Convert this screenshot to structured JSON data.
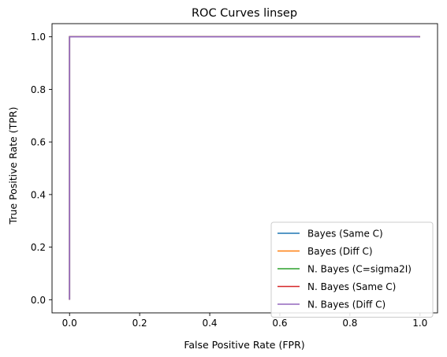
{
  "chart_data": {
    "type": "line",
    "title": "ROC Curves linsep",
    "xlabel": "False Positive Rate (FPR)",
    "ylabel": "True Positive Rate (TPR)",
    "xlim": [
      -0.05,
      1.05
    ],
    "ylim": [
      -0.05,
      1.05
    ],
    "xticks": [
      0.0,
      0.2,
      0.4,
      0.6,
      0.8,
      1.0
    ],
    "yticks": [
      0.0,
      0.2,
      0.4,
      0.6,
      0.8,
      1.0
    ],
    "xtick_labels": [
      "0.0",
      "0.2",
      "0.4",
      "0.6",
      "0.8",
      "1.0"
    ],
    "ytick_labels": [
      "0.0",
      "0.2",
      "0.4",
      "0.6",
      "0.8",
      "1.0"
    ],
    "grid": false,
    "legend_position": "lower-right",
    "series": [
      {
        "name": "Bayes (Same C)",
        "color": "#1f77b4",
        "x": [
          0.0,
          0.0,
          1.0
        ],
        "y": [
          0.0,
          1.0,
          1.0
        ]
      },
      {
        "name": "Bayes (Diff C)",
        "color": "#ff7f0e",
        "x": [
          0.0,
          0.0,
          1.0
        ],
        "y": [
          0.0,
          1.0,
          1.0
        ]
      },
      {
        "name": "N. Bayes (C=sigma2I)",
        "color": "#2ca02c",
        "x": [
          0.0,
          0.0,
          1.0
        ],
        "y": [
          0.0,
          1.0,
          1.0
        ]
      },
      {
        "name": "N. Bayes (Same C)",
        "color": "#d62728",
        "x": [
          0.0,
          0.0,
          1.0
        ],
        "y": [
          0.0,
          1.0,
          1.0
        ]
      },
      {
        "name": "N. Bayes (Diff C)",
        "color": "#9467bd",
        "x": [
          0.0,
          0.0,
          1.0
        ],
        "y": [
          0.0,
          1.0,
          1.0
        ]
      }
    ]
  }
}
